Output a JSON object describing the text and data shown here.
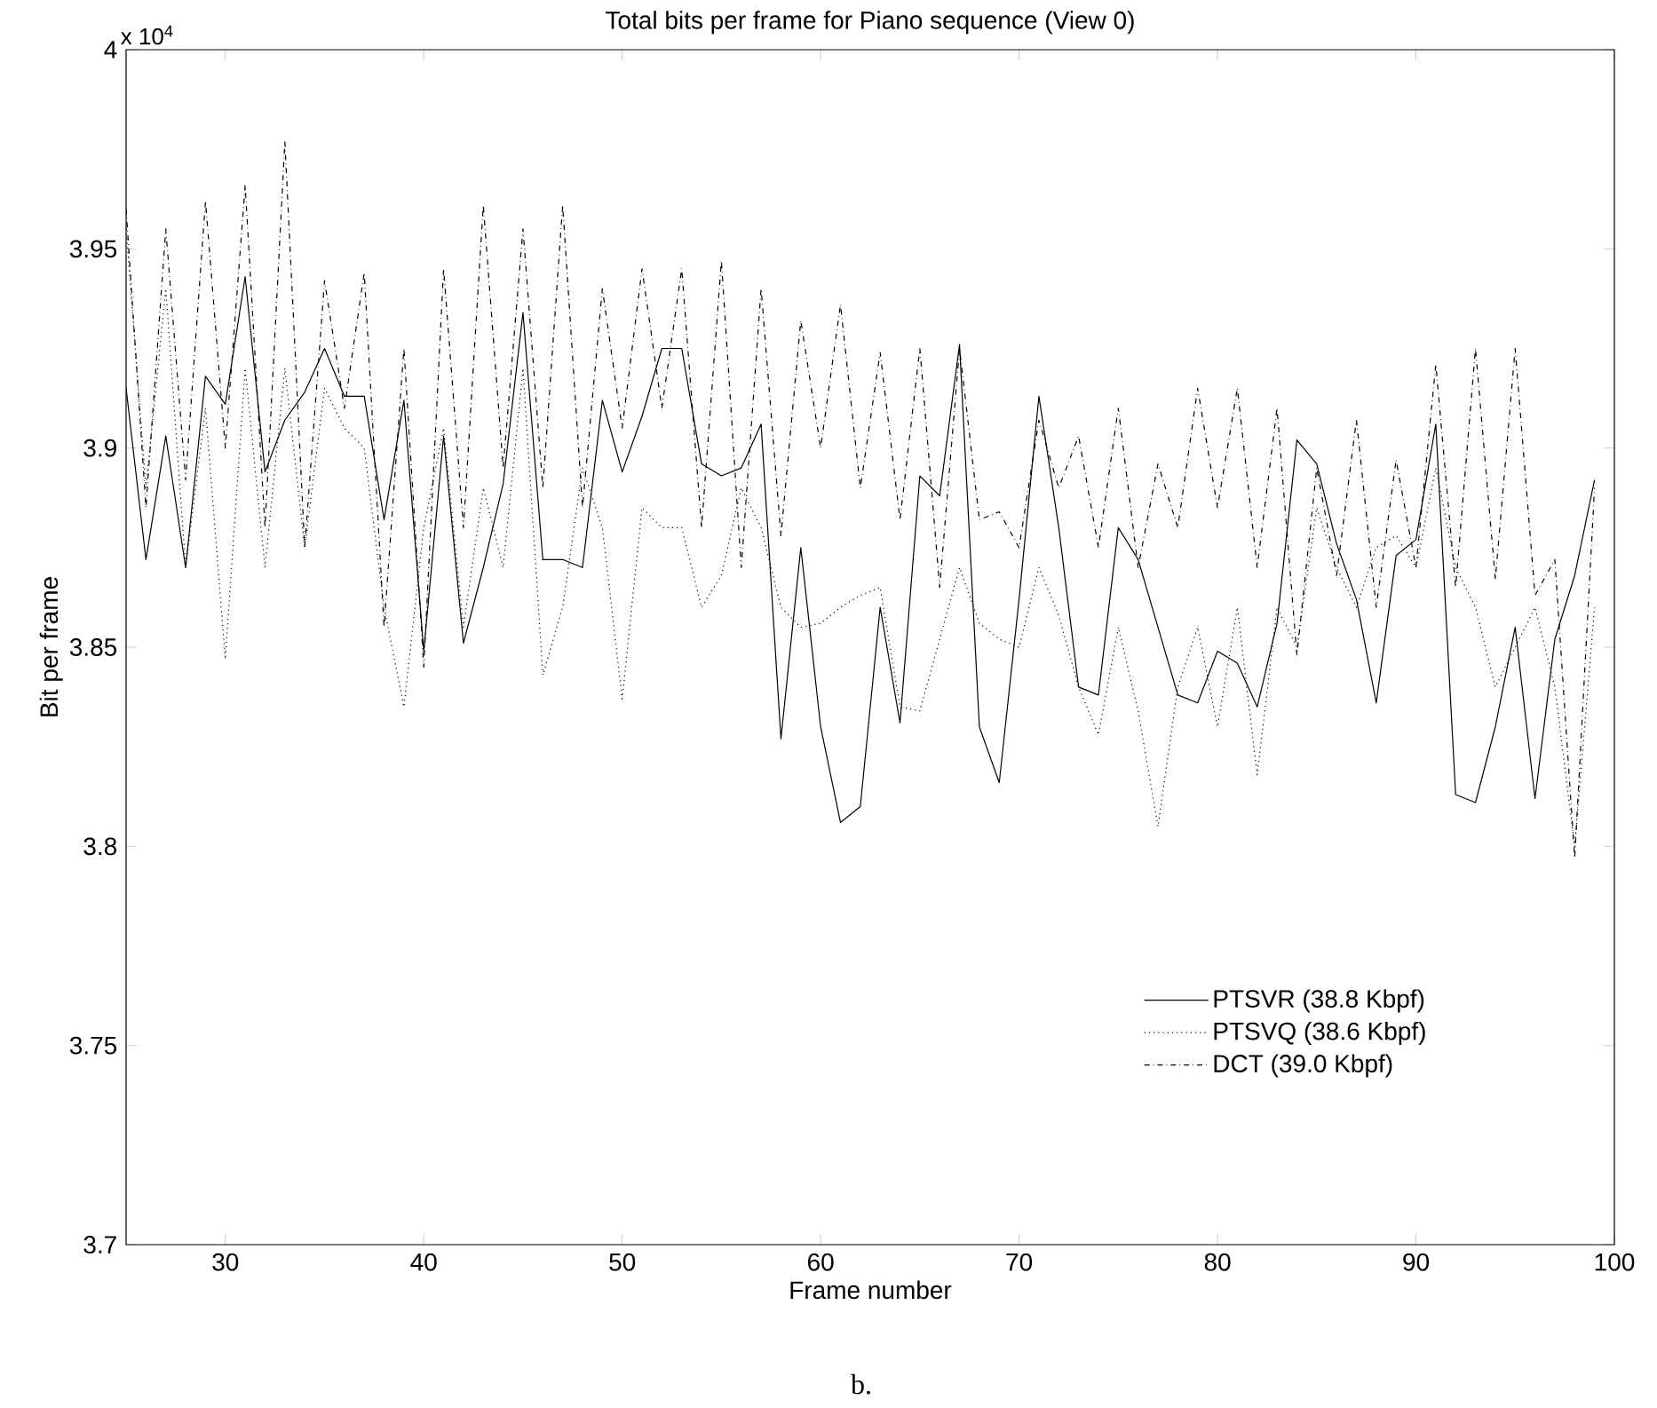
{
  "chart_data": {
    "type": "line",
    "title": "Total bits per frame for Piano sequence (View 0)",
    "xlabel": "Frame number",
    "ylabel": "Bit per frame",
    "annotations": [
      "x 10$^{4}$",
      "b."
    ],
    "x": [
      25,
      26,
      27,
      28,
      29,
      30,
      31,
      32,
      33,
      34,
      35,
      36,
      37,
      38,
      39,
      40,
      41,
      42,
      43,
      44,
      45,
      46,
      47,
      48,
      49,
      50,
      51,
      52,
      53,
      54,
      55,
      56,
      57,
      58,
      59,
      60,
      61,
      62,
      63,
      64,
      65,
      66,
      67,
      68,
      69,
      70,
      71,
      72,
      73,
      74,
      75,
      76,
      77,
      78,
      79,
      80,
      81,
      82,
      83,
      84,
      85,
      86,
      87,
      88,
      89,
      90,
      91,
      92,
      93,
      94,
      95,
      96,
      97,
      98,
      99
    ],
    "series": [
      {
        "name": "PTSVR (38.8 Kbpf)",
        "color": "#000000",
        "line_style": "solid",
        "values": [
          3.915,
          3.872,
          3.903,
          3.87,
          3.918,
          3.911,
          3.943,
          3.894,
          3.907,
          3.914,
          3.925,
          3.913,
          3.913,
          3.882,
          3.912,
          3.849,
          3.903,
          3.851,
          3.87,
          3.891,
          3.934,
          3.872,
          3.872,
          3.87,
          3.912,
          3.894,
          3.908,
          3.925,
          3.925,
          3.896,
          3.893,
          3.895,
          3.906,
          3.827,
          3.875,
          3.83,
          3.806,
          3.81,
          3.86,
          3.831,
          3.893,
          3.888,
          3.926,
          3.83,
          3.816,
          3.862,
          3.913,
          3.88,
          3.84,
          3.838,
          3.88,
          3.872,
          3.855,
          3.838,
          3.836,
          3.849,
          3.846,
          3.835,
          3.856,
          3.902,
          3.896,
          3.876,
          3.862,
          3.836,
          3.873,
          3.877,
          3.906,
          3.813,
          3.811,
          3.83,
          3.855,
          3.812,
          3.852,
          3.868,
          3.892
        ]
      },
      {
        "name": "PTSVQ (38.6 Kbpf)",
        "color": "#000000",
        "line_style": "dotted",
        "values": [
          3.955,
          3.89,
          3.94,
          3.87,
          3.91,
          3.847,
          3.92,
          3.87,
          3.92,
          3.875,
          3.915,
          3.905,
          3.9,
          3.86,
          3.835,
          3.88,
          3.905,
          3.855,
          3.89,
          3.87,
          3.92,
          3.843,
          3.86,
          3.895,
          3.88,
          3.837,
          3.885,
          3.88,
          3.88,
          3.86,
          3.868,
          3.89,
          3.88,
          3.86,
          3.855,
          3.856,
          3.86,
          3.863,
          3.865,
          3.835,
          3.834,
          3.852,
          3.87,
          3.856,
          3.852,
          3.85,
          3.87,
          3.858,
          3.84,
          3.828,
          3.855,
          3.834,
          3.805,
          3.84,
          3.855,
          3.83,
          3.86,
          3.818,
          3.86,
          3.85,
          3.885,
          3.87,
          3.86,
          3.875,
          3.878,
          3.87,
          3.895,
          3.87,
          3.86,
          3.84,
          3.85,
          3.86,
          3.84,
          3.8,
          3.86
        ]
      },
      {
        "name": "DCT (39.0 Kbpf)",
        "color": "#000000",
        "line_style": "dashed",
        "values": [
          3.96,
          3.885,
          3.955,
          3.892,
          3.962,
          3.9,
          3.966,
          3.88,
          3.977,
          3.875,
          3.942,
          3.91,
          3.944,
          3.855,
          3.925,
          3.845,
          3.945,
          3.88,
          3.961,
          3.895,
          3.955,
          3.89,
          3.961,
          3.885,
          3.94,
          3.905,
          3.945,
          3.91,
          3.945,
          3.88,
          3.947,
          3.87,
          3.94,
          3.878,
          3.932,
          3.9,
          3.936,
          3.89,
          3.924,
          3.882,
          3.925,
          3.865,
          3.925,
          3.882,
          3.884,
          3.875,
          3.907,
          3.89,
          3.903,
          3.875,
          3.91,
          3.87,
          3.896,
          3.88,
          3.915,
          3.885,
          3.915,
          3.87,
          3.91,
          3.848,
          3.895,
          3.868,
          3.907,
          3.86,
          3.897,
          3.87,
          3.921,
          3.865,
          3.925,
          3.867,
          3.925,
          3.863,
          3.872,
          3.797,
          3.89
        ]
      }
    ],
    "xlim": [
      25,
      100
    ],
    "xticks": [
      30,
      40,
      50,
      60,
      70,
      80,
      90,
      100
    ],
    "ylim": [
      3.7,
      4
    ],
    "yticks": [
      3.7,
      3.75,
      3.8,
      3.85,
      3.9,
      3.95,
      4
    ],
    "grid": false,
    "legend": "bottom right"
  }
}
